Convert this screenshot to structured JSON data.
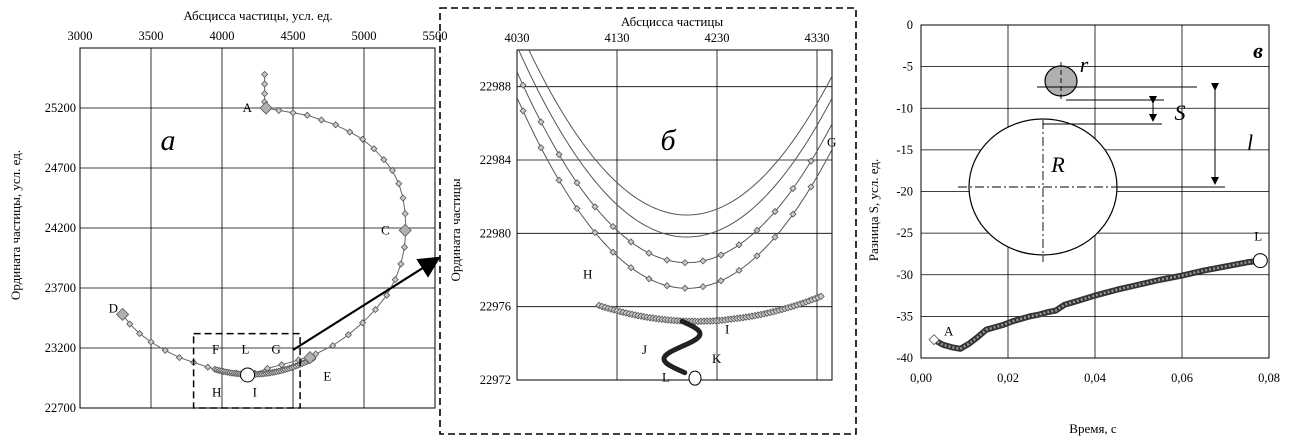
{
  "chart_data": [
    {
      "type": "scatter",
      "panel_letter": "а",
      "xlabel": "Абсцисса частицы, усл. ед.",
      "ylabel": "Ордината частицы, усл. ед.",
      "xlim": [
        3000,
        5500
      ],
      "ylim": [
        22700,
        25700
      ],
      "xticks": [
        "3000",
        "3500",
        "4000",
        "4500",
        "5000",
        "5500"
      ],
      "yticks": [
        "22700",
        "23200",
        "23700",
        "24200",
        "24700",
        "25200"
      ],
      "grid": true,
      "point_labels": [
        {
          "text": "A",
          "x": 4300,
          "y": 25200
        },
        {
          "text": "C",
          "x": 5290,
          "y": 24180
        },
        {
          "text": "D",
          "x": 3300,
          "y": 23480
        },
        {
          "text": "E",
          "x": 4700,
          "y": 23080
        },
        {
          "text": "F",
          "x": 4000,
          "y": 23120
        },
        {
          "text": "L",
          "x": 4180,
          "y": 23120
        },
        {
          "text": "G",
          "x": 4390,
          "y": 23120
        },
        {
          "text": "H",
          "x": 4000,
          "y": 22980
        },
        {
          "text": "I",
          "x": 4230,
          "y": 22980
        }
      ],
      "series": [
        {
          "values": [
            [
              4300,
              25480
            ],
            [
              4300,
              25400
            ],
            [
              4300,
              25320
            ],
            [
              4300,
              25250
            ],
            [
              4310,
              25200
            ],
            [
              4400,
              25180
            ],
            [
              4500,
              25160
            ],
            [
              4600,
              25140
            ],
            [
              4700,
              25100
            ],
            [
              4800,
              25060
            ],
            [
              4900,
              25000
            ],
            [
              4990,
              24940
            ],
            [
              5070,
              24860
            ],
            [
              5140,
              24770
            ],
            [
              5200,
              24680
            ],
            [
              5245,
              24570
            ],
            [
              5275,
              24450
            ],
            [
              5290,
              24320
            ],
            [
              5295,
              24180
            ],
            [
              5285,
              24040
            ],
            [
              5260,
              23900
            ],
            [
              5220,
              23770
            ],
            [
              5160,
              23640
            ],
            [
              5080,
              23520
            ],
            [
              4990,
              23410
            ],
            [
              4890,
              23310
            ],
            [
              4780,
              23220
            ],
            [
              4660,
              23150
            ],
            [
              4540,
              23100
            ],
            [
              4420,
              23060
            ],
            [
              4320,
              23030
            ],
            [
              4230,
              22990
            ],
            [
              4180,
              22980
            ],
            [
              4100,
              22990
            ],
            [
              4000,
              23010
            ],
            [
              3900,
              23040
            ],
            [
              3800,
              23080
            ],
            [
              3700,
              23120
            ],
            [
              3600,
              23180
            ],
            [
              3500,
              23250
            ],
            [
              3420,
              23320
            ],
            [
              3350,
              23400
            ],
            [
              3300,
              23480
            ]
          ]
        }
      ],
      "markers": [
        {
          "label": "A",
          "x": 4310,
          "y": 25200,
          "shape": "diamond-large"
        },
        {
          "label": "C",
          "x": 5290,
          "y": 24180,
          "shape": "diamond-large"
        },
        {
          "label": "D",
          "x": 3300,
          "y": 23480,
          "shape": "diamond-large"
        },
        {
          "label": "E",
          "x": 4620,
          "y": 23120,
          "shape": "diamond-large"
        },
        {
          "label": "L",
          "x": 4180,
          "y": 22975,
          "shape": "circle"
        }
      ],
      "inset_box": {
        "x1": 3800,
        "x2": 4550,
        "y1": 22700,
        "y2": 23320
      }
    },
    {
      "type": "line",
      "panel_letter": "б",
      "xlabel": "Абсцисса частицы",
      "ylabel": "Ордината частицы",
      "xlim": [
        4030,
        4345
      ],
      "ylim": [
        22972,
        22990
      ],
      "xticks": [
        "4030",
        "4130",
        "4230",
        "4330"
      ],
      "yticks": [
        "22972",
        "22976",
        "22980",
        "22984",
        "22988"
      ],
      "grid": true,
      "point_labels": [
        {
          "text": "G",
          "x": 4340,
          "y": 22985
        },
        {
          "text": "H",
          "x": 4112,
          "y": 22977.8
        },
        {
          "text": "I",
          "x": 4238,
          "y": 22974.8
        },
        {
          "text": "J",
          "x": 4155,
          "y": 22973.7
        },
        {
          "text": "K",
          "x": 4225,
          "y": 22973.2
        },
        {
          "text": "L",
          "x": 4175,
          "y": 22972.2
        }
      ],
      "series": [
        {
          "vertex_x": 4200,
          "vertex_y": 22981.0,
          "markers": false
        },
        {
          "vertex_x": 4200,
          "vertex_y": 22979.8,
          "markers": false
        },
        {
          "vertex_x": 4200,
          "vertex_y": 22978.4,
          "markers": true
        },
        {
          "vertex_x": 4200,
          "vertex_y": 22977.0,
          "markers": true
        }
      ],
      "trajectory_end": {
        "label": "L",
        "x": 4208,
        "y": 22972.1
      }
    },
    {
      "type": "line",
      "panel_letter": "в",
      "xlabel": "Время, с",
      "ylabel": "Разница S, усл. ед.",
      "xlim": [
        0,
        0.08
      ],
      "ylim": [
        -40,
        0
      ],
      "xticks": [
        "0,00",
        "0,02",
        "0,04",
        "0,06",
        "0,08"
      ],
      "yticks": [
        "0",
        "-5",
        "-10",
        "-15",
        "-20",
        "-25",
        "-30",
        "-35",
        "-40"
      ],
      "grid": true,
      "point_labels": [
        {
          "text": "A",
          "x": 0.003,
          "y": -37.8
        },
        {
          "text": "L",
          "x": 0.078,
          "y": -28.3
        }
      ],
      "series": [
        {
          "values": [
            [
              0.003,
              -37.8
            ],
            [
              0.005,
              -38.4
            ],
            [
              0.007,
              -38.7
            ],
            [
              0.009,
              -38.9
            ],
            [
              0.011,
              -38.3
            ],
            [
              0.013,
              -37.5
            ],
            [
              0.015,
              -36.6
            ],
            [
              0.017,
              -36.3
            ],
            [
              0.019,
              -36.0
            ],
            [
              0.021,
              -35.6
            ],
            [
              0.023,
              -35.3
            ],
            [
              0.025,
              -35.0
            ],
            [
              0.027,
              -34.8
            ],
            [
              0.029,
              -34.5
            ],
            [
              0.031,
              -34.3
            ],
            [
              0.033,
              -33.6
            ],
            [
              0.035,
              -33.3
            ],
            [
              0.04,
              -32.5
            ],
            [
              0.045,
              -31.8
            ],
            [
              0.05,
              -31.2
            ],
            [
              0.055,
              -30.6
            ],
            [
              0.06,
              -30.1
            ],
            [
              0.065,
              -29.5
            ],
            [
              0.07,
              -29.0
            ],
            [
              0.075,
              -28.5
            ],
            [
              0.078,
              -28.3
            ]
          ]
        }
      ],
      "diagram_labels": [
        "r",
        "S",
        "R",
        "l"
      ]
    }
  ]
}
